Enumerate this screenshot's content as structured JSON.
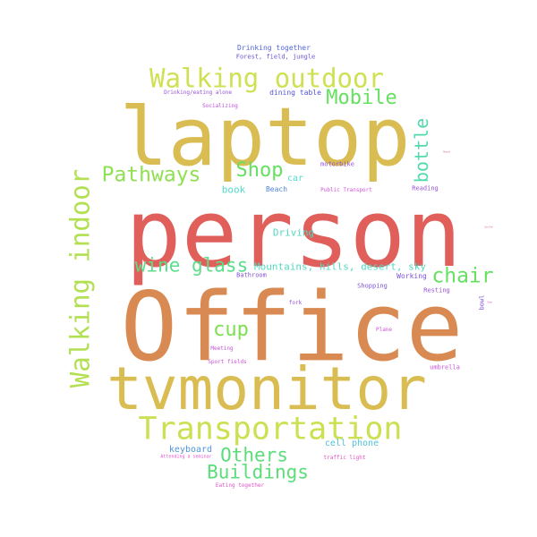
{
  "words": [
    {
      "text": "person",
      "color": "#e15f5a"
    },
    {
      "text": "Office",
      "color": "#d98a52"
    },
    {
      "text": "laptop",
      "color": "#d9bd52"
    },
    {
      "text": "tvmonitor",
      "color": "#d9bd52"
    },
    {
      "text": "Transportation",
      "color": "#cce052"
    },
    {
      "text": "Walking outdoor",
      "color": "#cfe052"
    },
    {
      "text": "Walking indoor",
      "color": "#b2e052"
    },
    {
      "text": "Pathways",
      "color": "#8fe052"
    },
    {
      "text": "Mobile",
      "color": "#66e060"
    },
    {
      "text": "Shop",
      "color": "#66e060"
    },
    {
      "text": "bottle",
      "color": "#52d9ad"
    },
    {
      "text": "chair",
      "color": "#66e060"
    },
    {
      "text": "wine glass",
      "color": "#5cdd8a"
    },
    {
      "text": "cup",
      "color": "#7ce052"
    },
    {
      "text": "Others",
      "color": "#5cdd7a"
    },
    {
      "text": "Buildings",
      "color": "#5cdd7a"
    },
    {
      "text": "Driving",
      "color": "#52d9c0"
    },
    {
      "text": "Mountains, hills, desert, sky",
      "color": "#52d9c0"
    },
    {
      "text": "book",
      "color": "#52d9cc"
    },
    {
      "text": "car",
      "color": "#52d9cc"
    },
    {
      "text": "cell phone",
      "color": "#52c3d9"
    },
    {
      "text": "keyboard",
      "color": "#5294d9"
    },
    {
      "text": "Beach",
      "color": "#5285d9"
    },
    {
      "text": "dining table",
      "color": "#5252d9"
    },
    {
      "text": "Drinking together",
      "color": "#5266d9"
    },
    {
      "text": "Forest, field, jungle",
      "color": "#6652d9"
    },
    {
      "text": "Drinking/eating alone",
      "color": "#9952d9"
    },
    {
      "text": "Socializing",
      "color": "#b852d9"
    },
    {
      "text": "motorbike",
      "color": "#9452d9"
    },
    {
      "text": "Public Transport",
      "color": "#d052d9"
    },
    {
      "text": "Reading",
      "color": "#9952d9"
    },
    {
      "text": "Working",
      "color": "#7d52d9"
    },
    {
      "text": "Shopping",
      "color": "#7d52d9"
    },
    {
      "text": "Resting",
      "color": "#9952d9"
    },
    {
      "text": "Bathroom",
      "color": "#8352d9"
    },
    {
      "text": "fork",
      "color": "#9952d9"
    },
    {
      "text": "bowl",
      "color": "#8352d9"
    },
    {
      "text": "Plane",
      "color": "#d052d9"
    },
    {
      "text": "Meeting",
      "color": "#c852d9"
    },
    {
      "text": "Sport fields",
      "color": "#d052d9"
    },
    {
      "text": "umbrella",
      "color": "#c852d9"
    },
    {
      "text": "Attending a seminar",
      "color": "#e052cc"
    },
    {
      "text": "traffic light",
      "color": "#e052c0"
    },
    {
      "text": "Eating together",
      "color": "#e052c8"
    },
    {
      "text": "Hand",
      "color": "#e05280"
    },
    {
      "text": "knife",
      "color": "#e05299"
    },
    {
      "text": "Sea",
      "color": "#e052b8"
    }
  ]
}
